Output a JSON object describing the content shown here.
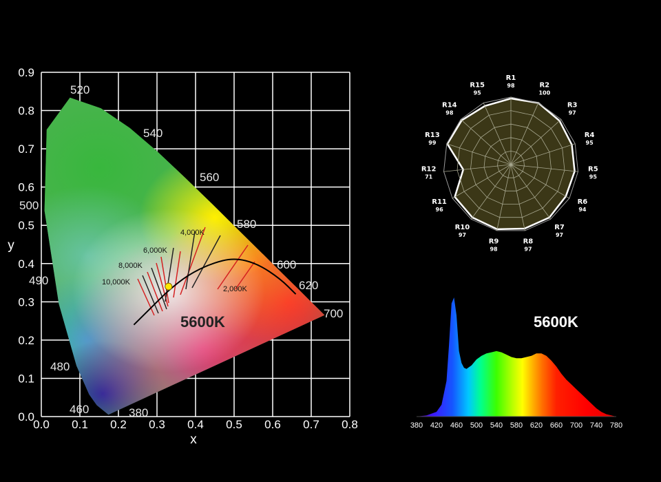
{
  "label_5600k": "5600K",
  "chart_data": [
    {
      "type": "scatter",
      "title": "",
      "xlabel": "x",
      "ylabel": "y",
      "xlim": [
        0,
        0.8
      ],
      "ylim": [
        0,
        0.9
      ],
      "x_ticks": [
        "0.0",
        "0.1",
        "0.2",
        "0.3",
        "0.4",
        "0.5",
        "0.6",
        "0.7",
        "0.8"
      ],
      "y_ticks": [
        "0.0",
        "0.1",
        "0.2",
        "0.3",
        "0.4",
        "0.5",
        "0.6",
        "0.7",
        "0.8",
        "0.9"
      ],
      "grid": true,
      "spectral_locus": [
        {
          "wl": 380,
          "x": 0.1741,
          "y": 0.005
        },
        {
          "wl": 460,
          "x": 0.144,
          "y": 0.0297
        },
        {
          "wl": 470,
          "x": 0.1241,
          "y": 0.0578
        },
        {
          "wl": 480,
          "x": 0.0913,
          "y": 0.1327
        },
        {
          "wl": 490,
          "x": 0.0454,
          "y": 0.295
        },
        {
          "wl": 500,
          "x": 0.0082,
          "y": 0.5384
        },
        {
          "wl": 510,
          "x": 0.0139,
          "y": 0.7502
        },
        {
          "wl": 520,
          "x": 0.0743,
          "y": 0.8338
        },
        {
          "wl": 530,
          "x": 0.1547,
          "y": 0.8059
        },
        {
          "wl": 540,
          "x": 0.2296,
          "y": 0.7543
        },
        {
          "wl": 550,
          "x": 0.3016,
          "y": 0.6923
        },
        {
          "wl": 560,
          "x": 0.3731,
          "y": 0.6245
        },
        {
          "wl": 570,
          "x": 0.4441,
          "y": 0.5547
        },
        {
          "wl": 580,
          "x": 0.5125,
          "y": 0.4866
        },
        {
          "wl": 590,
          "x": 0.5752,
          "y": 0.4242
        },
        {
          "wl": 600,
          "x": 0.627,
          "y": 0.3725
        },
        {
          "wl": 610,
          "x": 0.6658,
          "y": 0.334
        },
        {
          "wl": 620,
          "x": 0.6915,
          "y": 0.3083
        },
        {
          "wl": 640,
          "x": 0.719,
          "y": 0.2809
        },
        {
          "wl": 700,
          "x": 0.7347,
          "y": 0.2653
        }
      ],
      "wavelength_labels": [
        "520",
        "540",
        "560",
        "580",
        "600",
        "620",
        "700",
        "500",
        "490",
        "480",
        "460",
        "380"
      ],
      "cct_labels": [
        "10,000K",
        "8,000K",
        "6,000K",
        "4,000K",
        "2,000K"
      ],
      "planckian_locus": [
        {
          "x": 0.24,
          "y": 0.24
        },
        {
          "x": 0.29,
          "y": 0.29
        },
        {
          "x": 0.33,
          "y": 0.33
        },
        {
          "x": 0.38,
          "y": 0.37
        },
        {
          "x": 0.44,
          "y": 0.4
        },
        {
          "x": 0.5,
          "y": 0.415
        },
        {
          "x": 0.56,
          "y": 0.4
        },
        {
          "x": 0.62,
          "y": 0.36
        },
        {
          "x": 0.66,
          "y": 0.32
        }
      ],
      "point": {
        "label": "5600K",
        "x": 0.33,
        "y": 0.34
      }
    },
    {
      "type": "radar",
      "title": "",
      "rmax": 100,
      "categories": [
        "R1",
        "R2",
        "R3",
        "R4",
        "R5",
        "R6",
        "R7",
        "R8",
        "R9",
        "R10",
        "R11",
        "R12",
        "R13",
        "R14",
        "R15"
      ],
      "values": [
        98,
        100,
        97,
        95,
        95,
        94,
        97,
        97,
        98,
        97,
        96,
        71,
        99,
        98,
        95
      ],
      "value_labels": [
        "98",
        "100",
        "97",
        "95",
        "95",
        "94",
        "97",
        "97",
        "98",
        "97",
        "96",
        "71",
        "99",
        "98",
        "95"
      ]
    },
    {
      "type": "area",
      "title": "5600K",
      "xlabel": "",
      "ylabel": "",
      "xlim": [
        380,
        780
      ],
      "ylim": [
        0,
        1
      ],
      "x_ticks": [
        "380",
        "420",
        "460",
        "500",
        "540",
        "580",
        "620",
        "660",
        "700",
        "740",
        "780"
      ],
      "x": [
        380,
        400,
        420,
        430,
        440,
        445,
        450,
        455,
        460,
        465,
        470,
        475,
        480,
        490,
        500,
        510,
        520,
        530,
        540,
        550,
        560,
        570,
        580,
        590,
        600,
        610,
        620,
        630,
        640,
        650,
        660,
        670,
        680,
        690,
        700,
        710,
        720,
        730,
        740,
        750,
        760,
        770,
        780
      ],
      "values": [
        0.0,
        0.01,
        0.04,
        0.1,
        0.3,
        0.6,
        0.95,
        1.0,
        0.85,
        0.55,
        0.45,
        0.41,
        0.4,
        0.43,
        0.48,
        0.51,
        0.53,
        0.54,
        0.55,
        0.54,
        0.52,
        0.5,
        0.49,
        0.49,
        0.5,
        0.51,
        0.53,
        0.53,
        0.51,
        0.47,
        0.42,
        0.36,
        0.31,
        0.27,
        0.23,
        0.19,
        0.15,
        0.11,
        0.07,
        0.04,
        0.02,
        0.01,
        0.0
      ]
    }
  ]
}
